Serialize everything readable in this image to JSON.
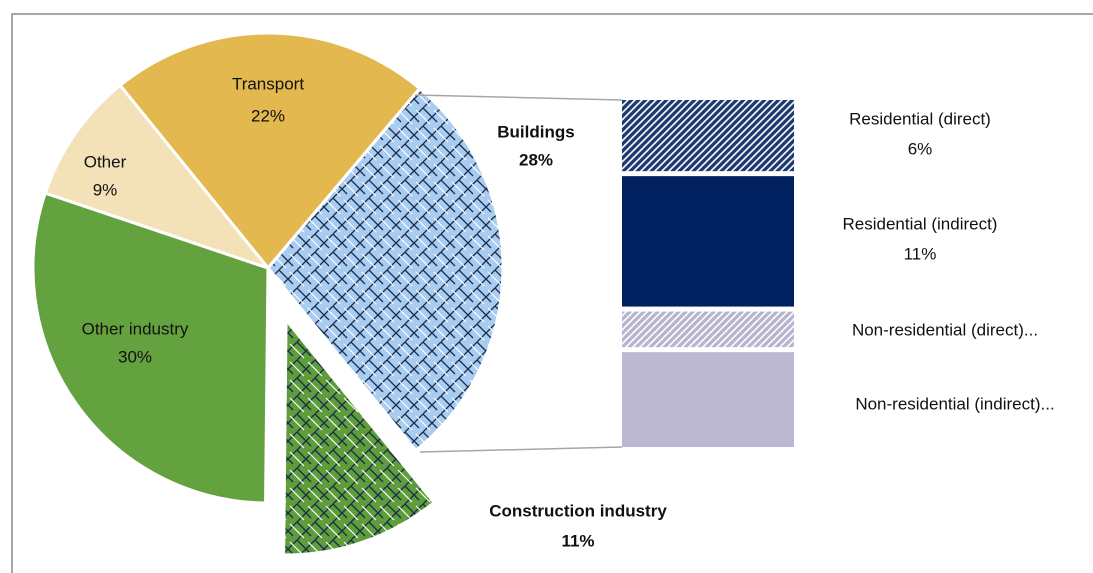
{
  "chart_data": {
    "type": "pie-of-bar",
    "categories": [
      "Transport",
      "Buildings",
      "Construction industry",
      "Other industry",
      "Other"
    ],
    "values": [
      22,
      28,
      11,
      30,
      9
    ],
    "value_labels": [
      "22%",
      "28%",
      "11%",
      "30%",
      "9%"
    ],
    "colors": [
      "#e3b84f",
      "#a9cdf0",
      "#5d9e3b",
      "#64a23f",
      "#f3e1b7"
    ],
    "hatched": [
      false,
      true,
      true,
      false,
      false
    ],
    "breakdown": {
      "categories": [
        "Residential (direct)",
        "Residential (indirect)",
        "Non-residential (direct)...",
        "Non-residential (indirect)..."
      ],
      "values": [
        6,
        11,
        3,
        8
      ],
      "value_labels": [
        "6%",
        "11%",
        null,
        null
      ],
      "colors": [
        "#1f3a70",
        "#002060",
        "#b9b3cf",
        "#bdb8d2"
      ],
      "hatched": [
        true,
        false,
        true,
        false
      ]
    }
  }
}
